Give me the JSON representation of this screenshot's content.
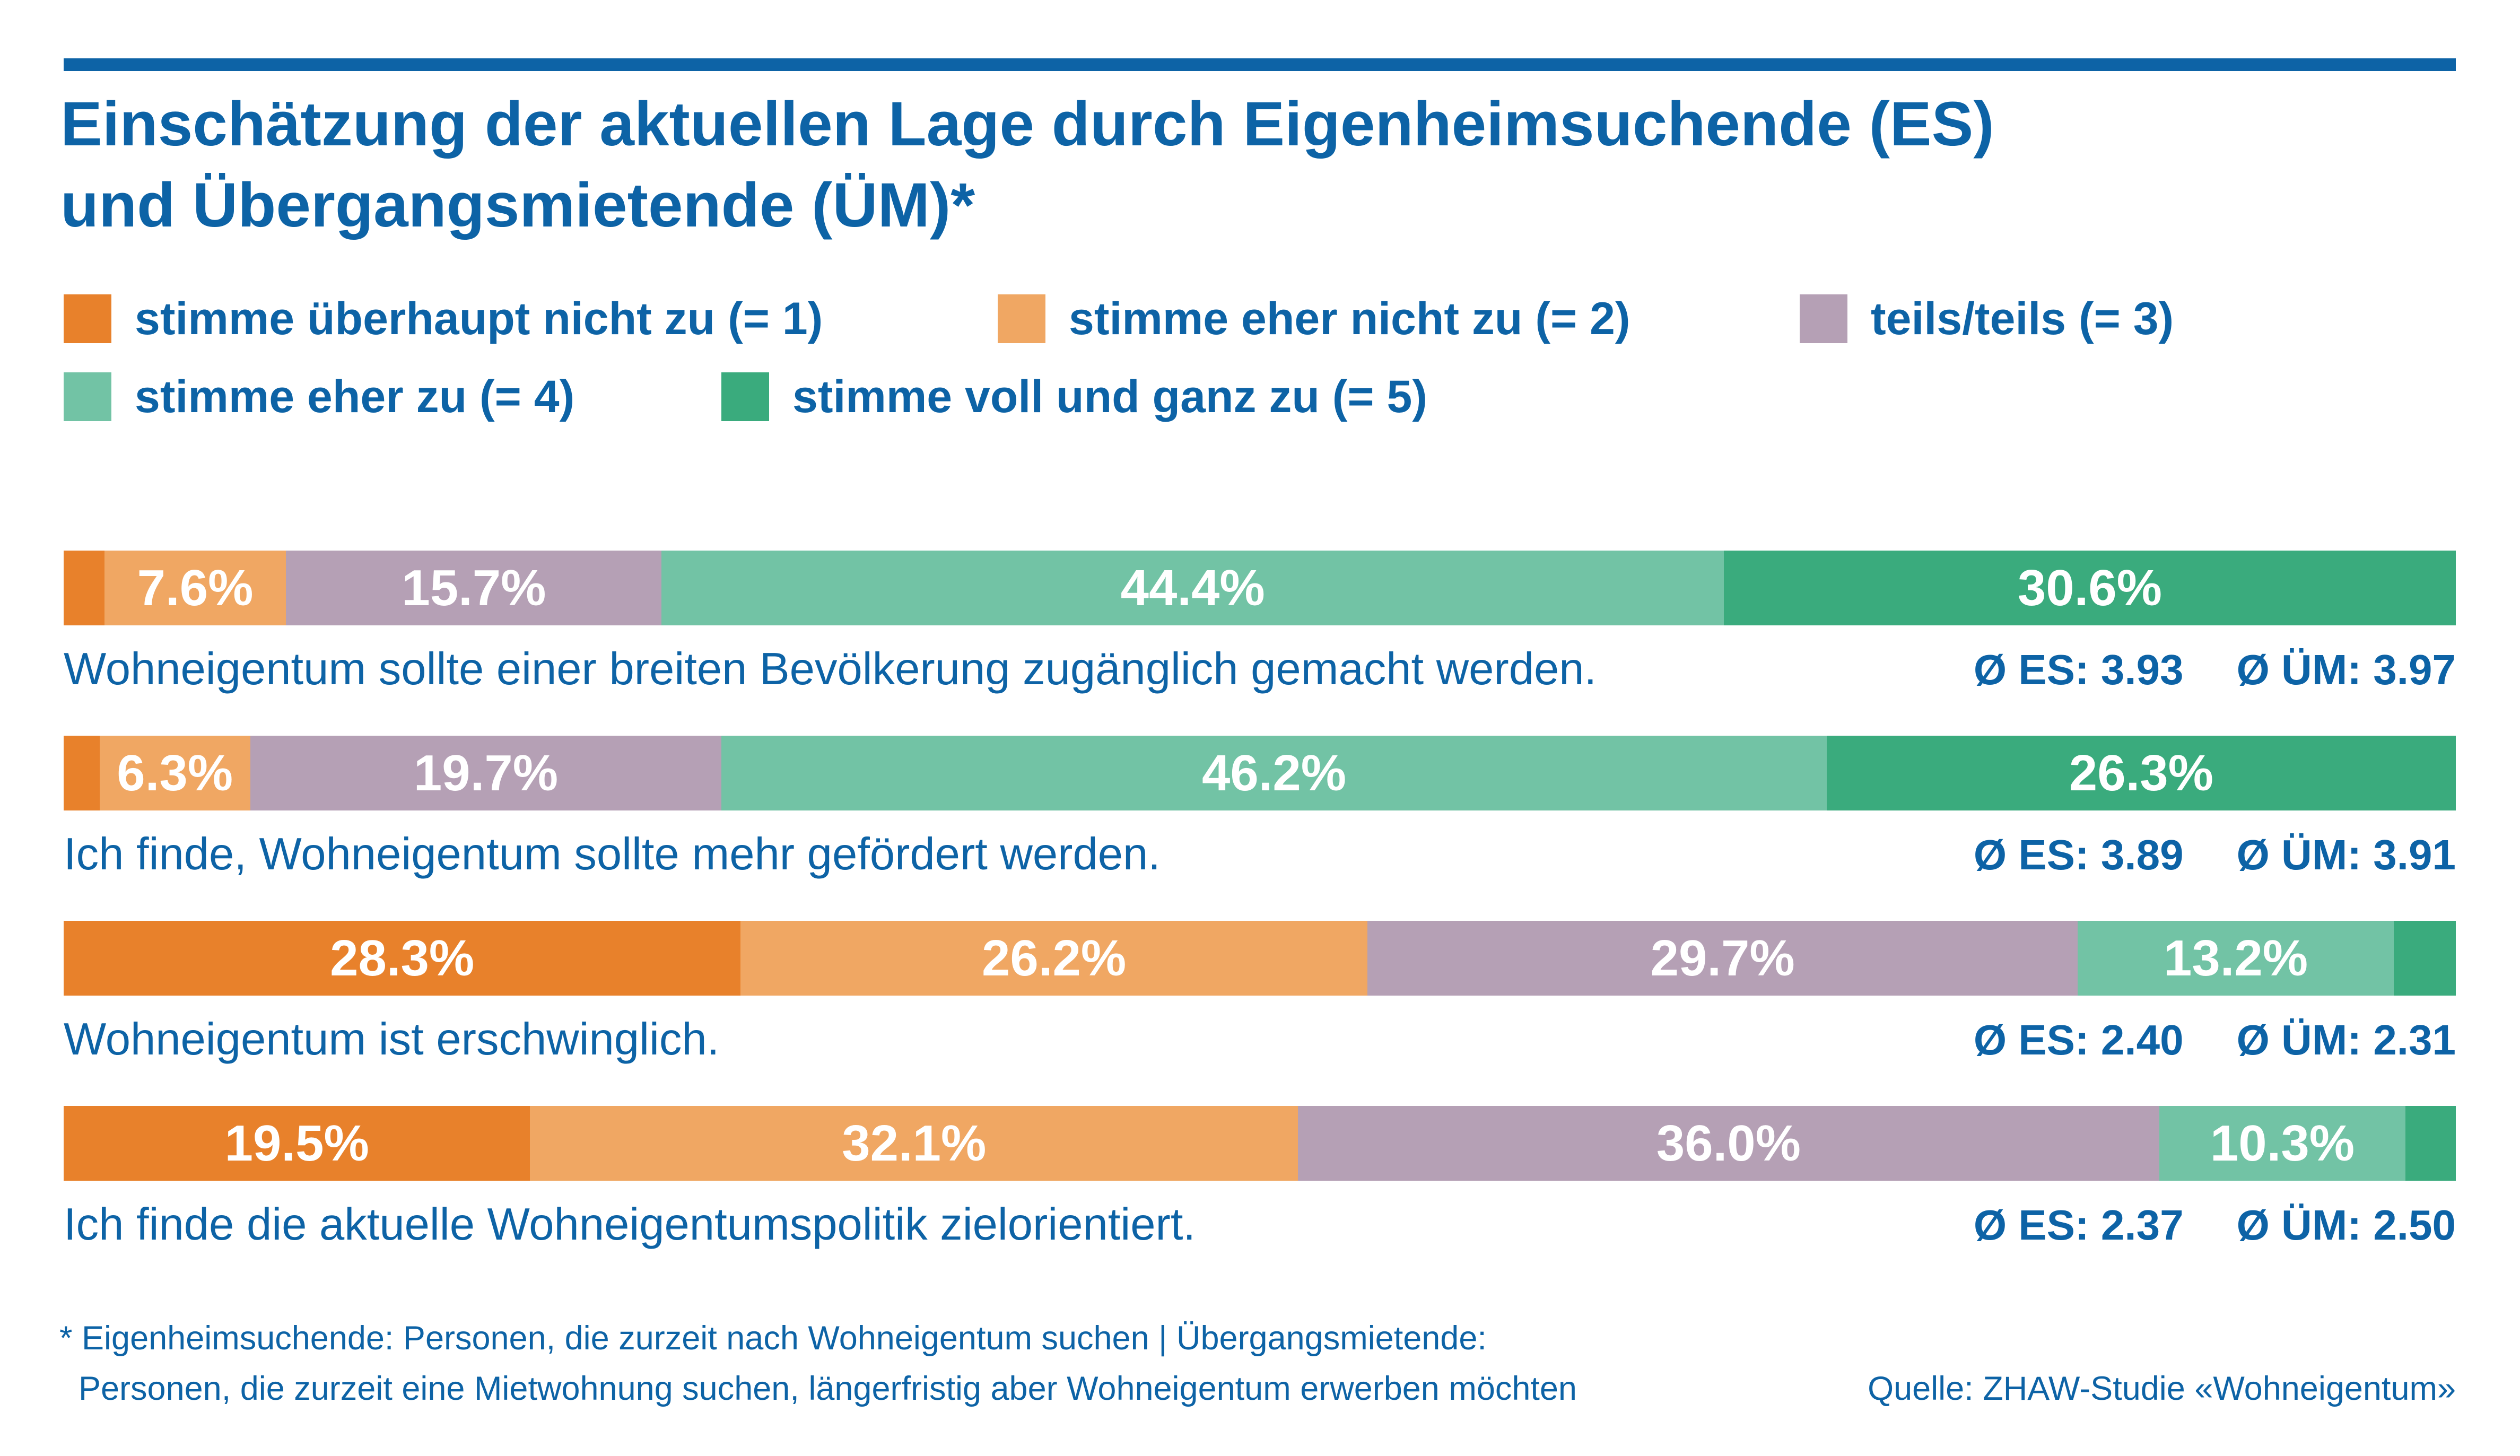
{
  "title": {
    "line1": "Einschätzung der aktuellen Lage durch Eigenheimsuchende (ES)",
    "line2": "und Übergangsmietende (ÜM)*"
  },
  "colors": {
    "accent_blue": "#0d63a6",
    "scale": [
      "#e8812b",
      "#f0a763",
      "#b5a0b5",
      "#72c3a5",
      "#3aab7d"
    ],
    "bar_label_text": "#ffffff"
  },
  "legend": {
    "items": [
      {
        "label": "stimme überhaupt nicht zu (= 1)",
        "color": "#e8812b"
      },
      {
        "label": "stimme eher nicht zu (= 2)",
        "color": "#f0a763"
      },
      {
        "label": "teils/teils (= 3)",
        "color": "#b5a0b5"
      },
      {
        "label": "stimme eher zu (= 4)",
        "color": "#72c3a5"
      },
      {
        "label": "stimme voll und ganz zu (= 5)",
        "color": "#3aab7d"
      }
    ]
  },
  "chart_data": {
    "type": "bar",
    "stacked": true,
    "orientation": "horizontal",
    "unit": "%",
    "xlim": [
      0,
      100
    ],
    "grid": false,
    "legend_position": "top",
    "categories": [
      "stimme überhaupt nicht zu (= 1)",
      "stimme eher nicht zu (= 2)",
      "teils/teils (= 3)",
      "stimme eher zu (= 4)",
      "stimme voll und ganz zu (= 5)"
    ],
    "colors": [
      "#e8812b",
      "#f0a763",
      "#b5a0b5",
      "#72c3a5",
      "#3aab7d"
    ],
    "rows": [
      {
        "statement": "Wohneigentum sollte einer breiten Bevölkerung zugänglich gemacht werden.",
        "values": [
          1.7,
          7.6,
          15.7,
          44.4,
          30.6
        ],
        "labels": [
          "",
          "7.6%",
          "15.7%",
          "44.4%",
          "30.6%"
        ],
        "avg_es": "Ø ES: 3.93",
        "avg_um": "Ø ÜM: 3.97",
        "avg_es_value": 3.93,
        "avg_um_value": 3.97
      },
      {
        "statement": "Ich finde, Wohneigentum sollte mehr gefördert werden.",
        "values": [
          1.5,
          6.3,
          19.7,
          46.2,
          26.3
        ],
        "labels": [
          "",
          "6.3%",
          "19.7%",
          "46.2%",
          "26.3%"
        ],
        "avg_es": "Ø ES: 3.89",
        "avg_um": "Ø ÜM: 3.91",
        "avg_es_value": 3.89,
        "avg_um_value": 3.91
      },
      {
        "statement": "Wohneigentum ist erschwinglich.",
        "values": [
          28.3,
          26.2,
          29.7,
          13.2,
          2.6
        ],
        "labels": [
          "28.3%",
          "26.2%",
          "29.7%",
          "13.2%",
          ""
        ],
        "avg_es": "Ø ES: 2.40",
        "avg_um": "Ø ÜM: 2.31",
        "avg_es_value": 2.4,
        "avg_um_value": 2.31
      },
      {
        "statement": "Ich finde die aktuelle Wohneigentumspolitik zielorientiert.",
        "values": [
          19.5,
          32.1,
          36.0,
          10.3,
          2.1
        ],
        "labels": [
          "19.5%",
          "32.1%",
          "36.0%",
          "10.3%",
          ""
        ],
        "avg_es": "Ø ES: 2.37",
        "avg_um": "Ø ÜM: 2.50",
        "avg_es_value": 2.37,
        "avg_um_value": 2.5
      }
    ]
  },
  "footnote": {
    "line1": "* Eigenheimsuchende: Personen, die zurzeit nach Wohneigentum suchen | Übergangsmietende:",
    "line2": "Personen, die zurzeit eine Mietwohnung suchen, längerfristig aber Wohneigentum erwerben möchten"
  },
  "source": "Quelle: ZHAW-Studie «Wohneigentum»"
}
